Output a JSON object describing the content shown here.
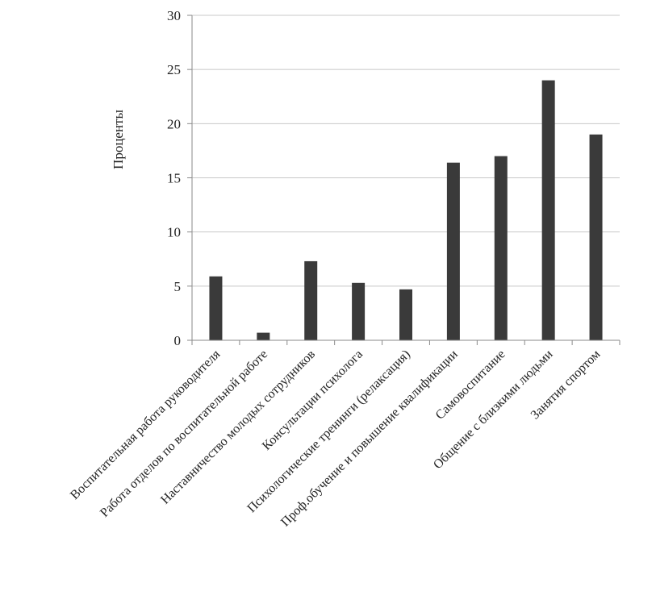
{
  "chart_data": {
    "type": "bar",
    "title": "",
    "xlabel": "",
    "ylabel": "Проценты",
    "ylim": [
      0,
      30
    ],
    "yticks": [
      0,
      5,
      10,
      15,
      20,
      25,
      30
    ],
    "grid": true,
    "legend": "none",
    "bar_color": "#3a3a3a",
    "categories": [
      "Воспитательная работа  руководителя",
      "Работа отделов по воспитательной работе",
      "Наставничество молодых сотрудников",
      "Консультации психолога",
      "Психологические тренинги (релаксация)",
      "Проф.обучение и повышение квалификации",
      "Самовоспитание",
      "Общение с близкими людьми",
      "Занятия спортом"
    ],
    "values": [
      5.9,
      0.7,
      7.3,
      5.3,
      4.7,
      16.4,
      17.0,
      24.0,
      19.0
    ]
  }
}
